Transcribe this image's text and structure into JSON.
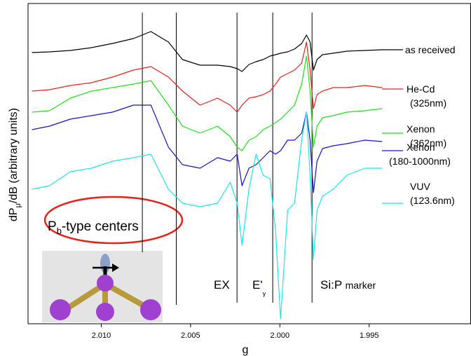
{
  "chart_data": {
    "type": "line",
    "xlabel": "g",
    "ylabel": [
      "dP",
      "μ",
      "/dB (arbitrary units)"
    ],
    "xlim": [
      2.0141,
      1.9893
    ],
    "ylim": [
      0,
      457
    ],
    "xticks": [
      {
        "value": 2.01,
        "label": "2.010"
      },
      {
        "value": 2.005,
        "label": "2.005"
      },
      {
        "value": 2.0,
        "label": "2.000"
      },
      {
        "value": 1.995,
        "label": "1.995"
      }
    ],
    "vlines": [
      2.0077,
      2.0058,
      2.0024,
      2.0004,
      1.9982
    ],
    "annotations": {
      "pb": [
        "P",
        "b",
        "-type centers"
      ],
      "ex": "EX",
      "egamma": [
        "E'",
        "γ"
      ],
      "sip": [
        "Si:P ",
        "marker"
      ]
    },
    "x": [
      2.01388,
      2.0129,
      2.01173,
      2.01055,
      2.00937,
      2.0082,
      2.00722,
      2.00624,
      2.00545,
      2.00447,
      2.00349,
      2.00278,
      2.00239,
      2.00212,
      2.00173,
      2.00133,
      2.00094,
      2.00055,
      2.00024,
      1.99996,
      1.99957,
      1.99918,
      1.99878,
      1.99851,
      1.99831,
      1.99812,
      1.99792,
      1.99761,
      1.99702,
      1.99624,
      1.99525,
      1.99427
    ],
    "series": [
      {
        "name": [
          "as received"
        ],
        "color": "#000000",
        "values": [
          387,
          388,
          390,
          394,
          400,
          407,
          417,
          402,
          377,
          369,
          369,
          367,
          364,
          360,
          370,
          374,
          377,
          382,
          384,
          386,
          388,
          392,
          400,
          412,
          402,
          362,
          377,
          384,
          386,
          389,
          390,
          391
        ]
      },
      {
        "name": [
          "He-Cd",
          "(325nm)"
        ],
        "color": "#e8211b",
        "values": [
          332,
          334,
          340,
          344,
          352,
          362,
          367,
          352,
          332,
          312,
          322,
          312,
          302,
          312,
          322,
          324,
          327,
          332,
          342,
          352,
          357,
          362,
          372,
          402,
          362,
          307,
          327,
          332,
          337,
          337,
          340,
          337
        ]
      },
      {
        "name": [
          "Xenon",
          "(362nm)"
        ],
        "color": "#22e01c",
        "values": [
          302,
          304,
          322,
          332,
          337,
          342,
          347,
          312,
          282,
          272,
          282,
          267,
          252,
          247,
          262,
          267,
          277,
          282,
          287,
          292,
          302,
          312,
          342,
          382,
          332,
          252,
          282,
          294,
          297,
          302,
          304,
          307
        ]
      },
      {
        "name": [
          "Xenon",
          "(180-1000nm)"
        ],
        "color": "#1414c8",
        "values": [
          277,
          282,
          292,
          297,
          302,
          312,
          312,
          252,
          227,
          222,
          237,
          232,
          242,
          197,
          222,
          227,
          237,
          247,
          242,
          247,
          262,
          262,
          272,
          302,
          262,
          187,
          232,
          250,
          254,
          257,
          262,
          260
        ]
      },
      {
        "name": [
          "VUV",
          "(123.6nm)"
        ],
        "color": "#1ee6e6",
        "values": [
          192,
          197,
          217,
          222,
          232,
          237,
          242,
          192,
          172,
          167,
          172,
          202,
          172,
          112,
          192,
          242,
          212,
          207,
          132,
          7,
          162,
          172,
          262,
          302,
          212,
          92,
          162,
          182,
          192,
          212,
          222,
          222
        ]
      }
    ]
  }
}
